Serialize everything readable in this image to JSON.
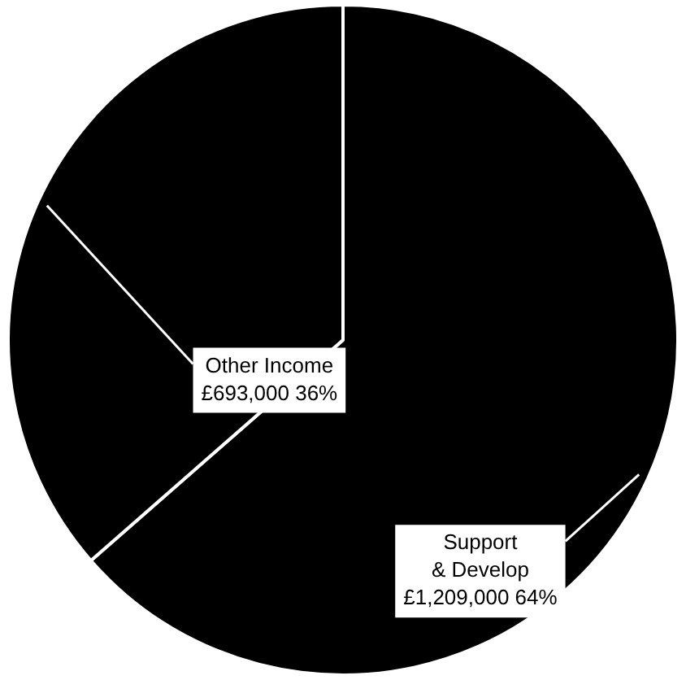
{
  "chart_data": {
    "type": "pie",
    "categories": [
      "Support & Develop",
      "Other Income"
    ],
    "values": [
      1209000,
      693000
    ],
    "colors": [
      "#000000",
      "#000000"
    ],
    "value_labels": [
      "£1,209,000 64%",
      "£693,000 36%"
    ],
    "legend": false
  }
}
